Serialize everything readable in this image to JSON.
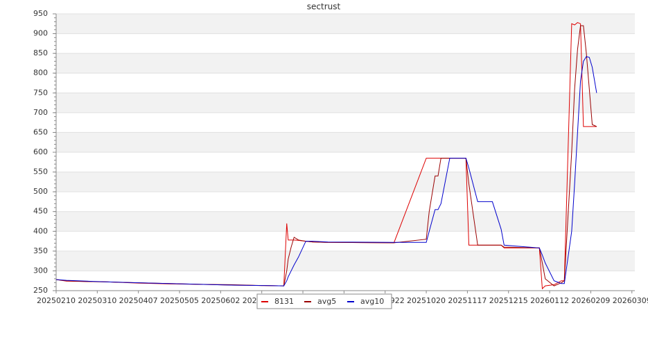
{
  "chart_data": {
    "type": "line",
    "title": "sectrust",
    "x": [
      "20250210",
      "20250217",
      "20250303",
      "20250317",
      "20250407",
      "20250428",
      "20250519",
      "20250609",
      "20250630",
      "20250715",
      "20250717",
      "20250718",
      "20250720",
      "20250722",
      "20250725",
      "20250730",
      "20250804",
      "20250814",
      "20250928",
      "20251020",
      "20251022",
      "20251026",
      "20251028",
      "20251030",
      "20251105",
      "20251116",
      "20251118",
      "20251124",
      "20251204",
      "20251210",
      "20251212",
      "20260105",
      "20260107",
      "20260109",
      "20260115",
      "20260120",
      "20260122",
      "20260127",
      "20260129",
      "20260131",
      "20260202",
      "20260204",
      "20260206",
      "20260208",
      "20260210",
      "20260213"
    ],
    "series": [
      {
        "name": "8131",
        "color": "#dd0000",
        "values": [
          278,
          274,
          273,
          272,
          269,
          267,
          266,
          264,
          263,
          262,
          420,
          378,
          378,
          378,
          377,
          375,
          373,
          372,
          371,
          585,
          585,
          585,
          585,
          585,
          585,
          585,
          365,
          365,
          365,
          365,
          358,
          358,
          255,
          262,
          265,
          275,
          275,
          925,
          922,
          928,
          925,
          665,
          665,
          665,
          665,
          665
        ]
      },
      {
        "name": "avg5",
        "color": "#990000",
        "values": [
          278,
          275,
          273,
          272,
          270,
          268,
          266,
          265,
          263,
          262,
          300,
          330,
          360,
          385,
          378,
          375,
          373,
          372,
          371,
          380,
          450,
          540,
          540,
          585,
          585,
          585,
          520,
          365,
          365,
          365,
          360,
          358,
          320,
          280,
          262,
          270,
          275,
          600,
          760,
          860,
          920,
          920,
          850,
          760,
          670,
          665
        ]
      },
      {
        "name": "avg10",
        "color": "#0000cc",
        "values": [
          278,
          276,
          274,
          272,
          270,
          268,
          266,
          264,
          263,
          262,
          275,
          285,
          300,
          315,
          335,
          375,
          375,
          373,
          372,
          372,
          400,
          455,
          455,
          470,
          585,
          585,
          560,
          475,
          475,
          405,
          365,
          358,
          340,
          320,
          275,
          268,
          268,
          400,
          520,
          650,
          780,
          830,
          842,
          840,
          815,
          750
        ]
      }
    ],
    "xlim": [
      "20250210",
      "20260311"
    ],
    "xticks": [
      "20250210",
      "20250310",
      "20250407",
      "20250505",
      "20250602",
      "20250630",
      "20250728",
      "20250825",
      "20250922",
      "20251020",
      "20251117",
      "20251215",
      "20260112",
      "20260209",
      "20260309"
    ],
    "ylim": [
      250,
      950
    ],
    "yticks": [
      250,
      300,
      350,
      400,
      450,
      500,
      550,
      600,
      650,
      700,
      750,
      800,
      850,
      900,
      950
    ],
    "grid": true,
    "legend": "bottom"
  }
}
